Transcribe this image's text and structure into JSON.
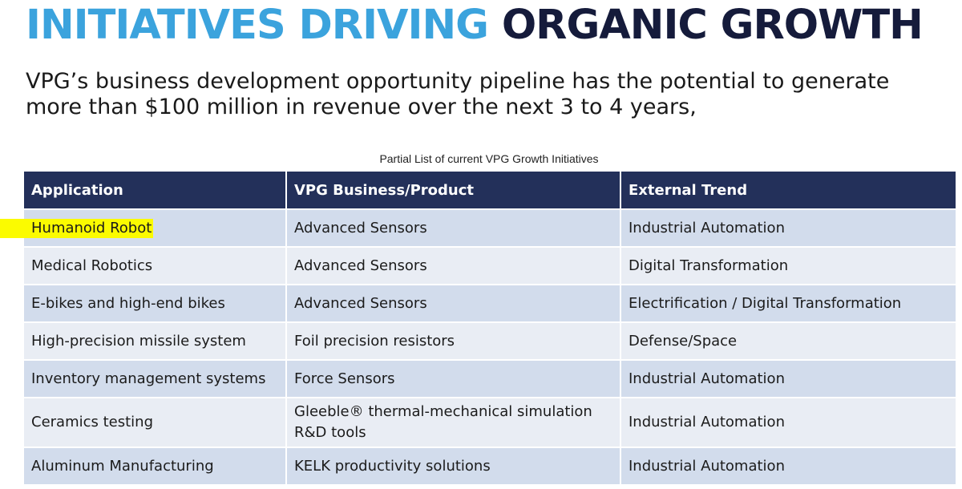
{
  "title": {
    "highlight": "INITIATIVES DRIVING",
    "rest": "ORGANIC GROWTH"
  },
  "subtitle": "VPG’s business development opportunity pipeline has the potential to generate more than $100 million in revenue over the next 3 to 4 years,",
  "table": {
    "caption": "Partial List of current VPG Growth Initiatives",
    "headers": [
      "Application",
      "VPG Business/Product",
      "External Trend"
    ],
    "rows": [
      [
        "Humanoid Robot",
        "Advanced Sensors",
        "Industrial Automation"
      ],
      [
        "Medical Robotics",
        "Advanced Sensors",
        "Digital Transformation"
      ],
      [
        "E-bikes and high-end bikes",
        "Advanced Sensors",
        "Electrification / Digital Transformation"
      ],
      [
        "High-precision missile system",
        "Foil precision resistors",
        "Defense/Space"
      ],
      [
        "Inventory management systems",
        "Force Sensors",
        "Industrial Automation"
      ],
      [
        "Ceramics testing",
        "Gleeble® thermal-mechanical simulation R&D tools",
        "Industrial Automation"
      ],
      [
        "Aluminum Manufacturing",
        "KELK productivity solutions",
        "Industrial Automation"
      ]
    ],
    "highlight_color": "#fbfb00"
  },
  "colors": {
    "title_accent": "#3ba3dd",
    "title_dark": "#151b3b",
    "header_bg": "#23305a",
    "row_band_dark": "#d2dcec",
    "row_band_light": "#e9edf4"
  }
}
